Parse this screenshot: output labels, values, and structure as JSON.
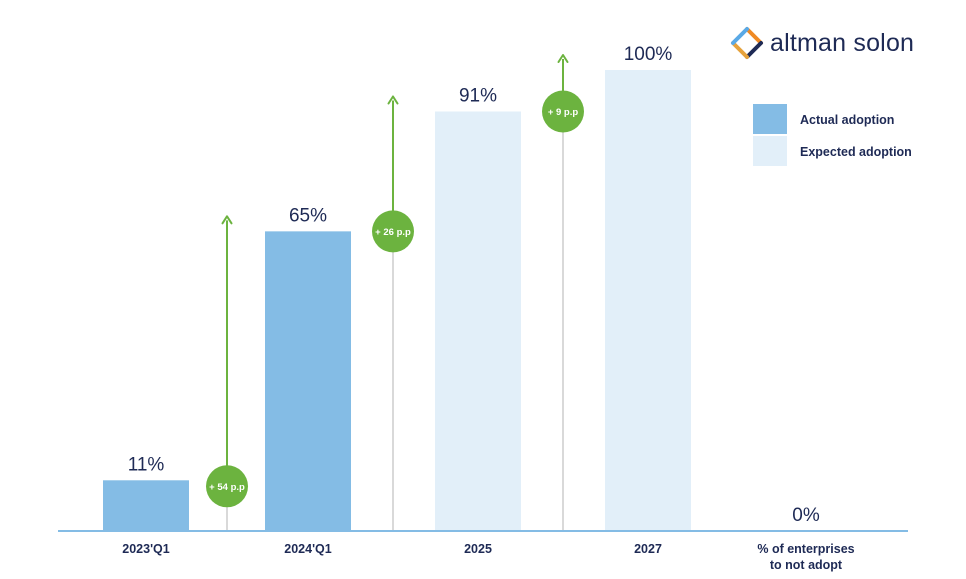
{
  "brand": {
    "name": "altman solon"
  },
  "colors": {
    "actual": "#84bce5",
    "expected": "#e2eff9",
    "axis": "#84bce5",
    "arrow": "#6cb33f",
    "badge": "#6cb33f",
    "connector": "#d9d9d9",
    "text": "#1e2a55"
  },
  "legend": {
    "items": [
      {
        "label": "Actual adoption",
        "color": "#84bce5"
      },
      {
        "label": "Expected adoption",
        "color": "#e2eff9"
      }
    ]
  },
  "chart_data": {
    "type": "bar",
    "categories": [
      "2023'Q1",
      "2024'Q1",
      "2025",
      "2027",
      "% of enterprises\nto not adopt"
    ],
    "values": [
      11,
      65,
      91,
      100,
      0
    ],
    "value_labels": [
      "11%",
      "65%",
      "91%",
      "100%",
      "0%"
    ],
    "kinds": [
      "actual",
      "actual",
      "expected",
      "expected",
      "none"
    ],
    "ylim": [
      0,
      100
    ],
    "grid": false,
    "legend_position": "top-right",
    "increments": [
      {
        "between": [
          0,
          1
        ],
        "label": "+ 54 p.p"
      },
      {
        "between": [
          1,
          2
        ],
        "label": "+ 26 p.p"
      },
      {
        "between": [
          2,
          3
        ],
        "label": "+ 9 p.p"
      }
    ]
  }
}
